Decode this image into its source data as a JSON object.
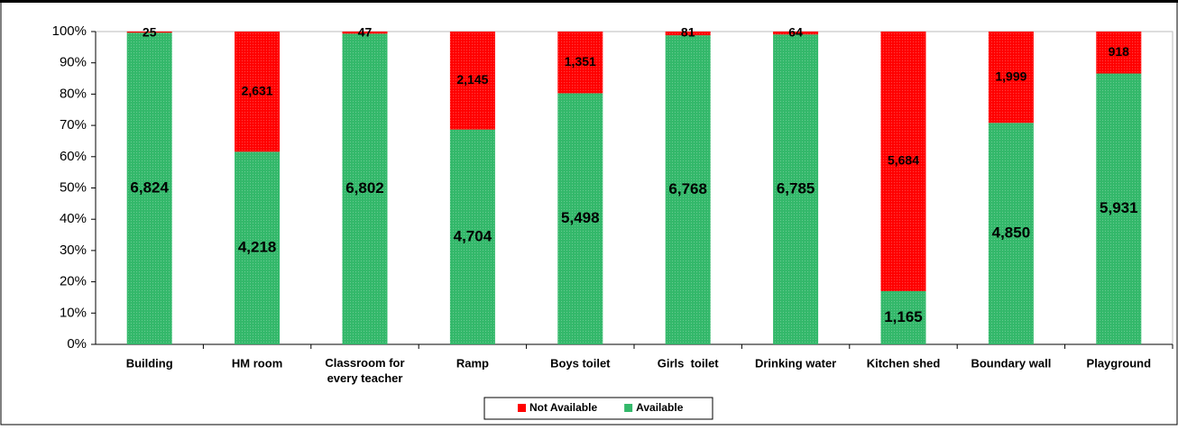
{
  "chart_data": {
    "type": "stacked-percent-bar",
    "categories": [
      "Building",
      "HM room",
      "Classroom for every teacher",
      "Ramp",
      "Boys toilet",
      "Girls  toilet",
      "Drinking water",
      "Kitchen shed",
      "Boundary wall",
      "Playground"
    ],
    "series": [
      {
        "name": "Available",
        "color": "#33b86a",
        "values": [
          6824,
          4218,
          6802,
          4704,
          5498,
          6768,
          6785,
          1165,
          4850,
          5931
        ],
        "value_labels": [
          "6,824",
          "4,218",
          "6,802",
          "4,704",
          "5,498",
          "6,768",
          "6,785",
          "1,165",
          "4,850",
          "5,931"
        ]
      },
      {
        "name": "Not Available",
        "color": "#ff0000",
        "values": [
          25,
          2631,
          47,
          2145,
          1351,
          81,
          64,
          5684,
          1999,
          918
        ],
        "value_labels": [
          "25",
          "2,631",
          "47",
          "2,145",
          "1,351",
          "81",
          "64",
          "5,684",
          "1,999",
          "918"
        ]
      }
    ],
    "ylim": [
      0,
      100
    ],
    "yticks": [
      {
        "value": 0,
        "label": "0%"
      },
      {
        "value": 10,
        "label": "10%"
      },
      {
        "value": 20,
        "label": "20%"
      },
      {
        "value": 30,
        "label": "30%"
      },
      {
        "value": 40,
        "label": "40%"
      },
      {
        "value": 50,
        "label": "50%"
      },
      {
        "value": 60,
        "label": "60%"
      },
      {
        "value": 70,
        "label": "70%"
      },
      {
        "value": 80,
        "label": "80%"
      },
      {
        "value": 90,
        "label": "90%"
      },
      {
        "value": 100,
        "label": "100%"
      }
    ],
    "legend": "bottom"
  }
}
